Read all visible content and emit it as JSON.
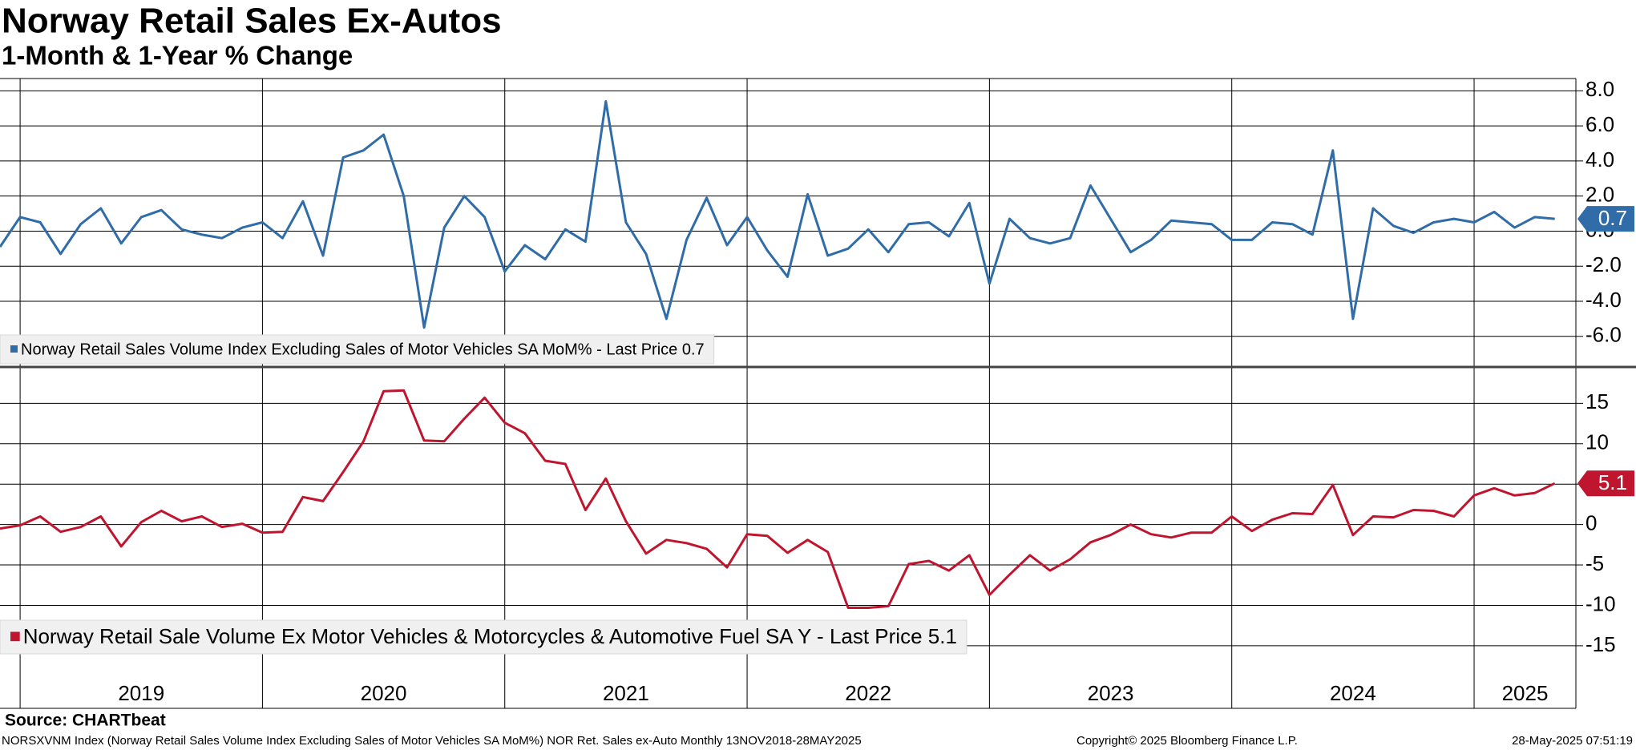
{
  "title": "Norway Retail Sales Ex-Autos",
  "subtitle": "1-Month & 1-Year % Change",
  "source": "Source: CHARTbeat",
  "footer_left": "NORSXVNM Index (Norway Retail Sales Volume Index Excluding Sales of Motor Vehicles SA MoM%) NOR Ret. Sales ex-Auto  Monthly 13NOV2018-28MAY2025",
  "footer_center": "Copyright© 2025 Bloomberg Finance L.P.",
  "footer_right": "28-May-2025 07:51:19",
  "chart_data": [
    {
      "type": "line",
      "x": [
        2018.917,
        2019.0,
        2019.083,
        2019.167,
        2019.25,
        2019.333,
        2019.417,
        2019.5,
        2019.583,
        2019.667,
        2019.75,
        2019.833,
        2019.917,
        2020.0,
        2020.083,
        2020.167,
        2020.25,
        2020.333,
        2020.417,
        2020.5,
        2020.583,
        2020.667,
        2020.75,
        2020.833,
        2020.917,
        2021.0,
        2021.083,
        2021.167,
        2021.25,
        2021.333,
        2021.417,
        2021.5,
        2021.583,
        2021.667,
        2021.75,
        2021.833,
        2021.917,
        2022.0,
        2022.083,
        2022.167,
        2022.25,
        2022.333,
        2022.417,
        2022.5,
        2022.583,
        2022.667,
        2022.75,
        2022.833,
        2022.917,
        2023.0,
        2023.083,
        2023.167,
        2023.25,
        2023.333,
        2023.417,
        2023.5,
        2023.583,
        2023.667,
        2023.75,
        2023.833,
        2023.917,
        2024.0,
        2024.083,
        2024.167,
        2024.25,
        2024.333,
        2024.417,
        2024.5,
        2024.583,
        2024.667,
        2024.75,
        2024.833,
        2024.917,
        2025.0,
        2025.083,
        2025.167,
        2025.25,
        2025.333
      ],
      "xlim": [
        2018.917,
        2025.42
      ],
      "series": [
        {
          "name": "Norway Retail Sales Volume Index Excluding Sales of Motor Vehicles SA MoM% - Last Price 0.7",
          "color": "#2f6ca8",
          "values": [
            -0.9,
            0.8,
            0.5,
            -1.3,
            0.4,
            1.3,
            -0.7,
            0.8,
            1.2,
            0.1,
            -0.2,
            -0.4,
            0.2,
            0.5,
            -0.4,
            1.7,
            -1.4,
            4.2,
            4.6,
            5.5,
            2.0,
            -5.5,
            0.2,
            2.0,
            0.8,
            -2.3,
            -0.8,
            -1.6,
            0.1,
            -0.6,
            7.4,
            0.5,
            -1.3,
            -5.0,
            -0.5,
            1.9,
            -0.8,
            0.8,
            -1.1,
            -2.6,
            2.1,
            -1.4,
            -1.0,
            0.1,
            -1.2,
            0.4,
            0.5,
            -0.3,
            1.6,
            -3.0,
            0.7,
            -0.4,
            -0.7,
            -0.4,
            2.6,
            0.7,
            -1.2,
            -0.5,
            0.6,
            0.5,
            0.4,
            -0.5,
            -0.5,
            0.5,
            0.4,
            -0.2,
            4.6,
            -5.0,
            1.3,
            0.3,
            -0.1,
            0.5,
            0.7,
            0.5,
            1.1,
            0.2,
            0.8,
            0.7
          ]
        }
      ],
      "ylim": [
        -7.7,
        8.7
      ],
      "yticks": [
        {
          "value": 8,
          "label": "8.0"
        },
        {
          "value": 6,
          "label": "6.0"
        },
        {
          "value": 4,
          "label": "4.0"
        },
        {
          "value": 2,
          "label": "2.0"
        },
        {
          "value": 0,
          "label": "0.0"
        },
        {
          "value": -2,
          "label": "-2.0"
        },
        {
          "value": -4,
          "label": "-4.0"
        },
        {
          "value": -6,
          "label": "-6.0"
        }
      ],
      "grid": true
    },
    {
      "type": "line",
      "x": [
        2018.917,
        2019.0,
        2019.083,
        2019.167,
        2019.25,
        2019.333,
        2019.417,
        2019.5,
        2019.583,
        2019.667,
        2019.75,
        2019.833,
        2019.917,
        2020.0,
        2020.083,
        2020.167,
        2020.25,
        2020.333,
        2020.417,
        2020.5,
        2020.583,
        2020.667,
        2020.75,
        2020.833,
        2020.917,
        2021.0,
        2021.083,
        2021.167,
        2021.25,
        2021.333,
        2021.417,
        2021.5,
        2021.583,
        2021.667,
        2021.75,
        2021.833,
        2021.917,
        2022.0,
        2022.083,
        2022.167,
        2022.25,
        2022.333,
        2022.417,
        2022.5,
        2022.583,
        2022.667,
        2022.75,
        2022.833,
        2022.917,
        2023.0,
        2023.083,
        2023.167,
        2023.25,
        2023.333,
        2023.417,
        2023.5,
        2023.583,
        2023.667,
        2023.75,
        2023.833,
        2023.917,
        2024.0,
        2024.083,
        2024.167,
        2024.25,
        2024.333,
        2024.417,
        2024.5,
        2024.583,
        2024.667,
        2024.75,
        2024.833,
        2024.917,
        2025.0,
        2025.083,
        2025.167,
        2025.25,
        2025.333
      ],
      "xlim": [
        2018.917,
        2025.42
      ],
      "xticks": [
        2019,
        2020,
        2021,
        2022,
        2023,
        2024,
        2025
      ],
      "series": [
        {
          "name": "Norway Retail Sale Volume Ex Motor Vehicles & Motorcycles & Automotive Fuel SA Y - Last Price 5.1",
          "color": "#c0152f",
          "values": [
            -0.5,
            -0.1,
            1.0,
            -0.9,
            -0.3,
            1.0,
            -2.7,
            0.3,
            1.7,
            0.4,
            1.0,
            -0.3,
            0.1,
            -1.0,
            -0.9,
            3.4,
            2.9,
            6.5,
            10.3,
            16.5,
            16.6,
            10.4,
            10.3,
            13.1,
            15.7,
            12.6,
            11.3,
            7.9,
            7.5,
            1.8,
            5.7,
            0.4,
            -3.6,
            -1.9,
            -2.3,
            -3.0,
            -5.3,
            -1.2,
            -1.4,
            -3.5,
            -1.9,
            -3.4,
            -10.3,
            -10.3,
            -10.1,
            -4.9,
            -4.5,
            -5.7,
            -3.8,
            -8.7,
            -6.2,
            -3.8,
            -5.7,
            -4.3,
            -2.2,
            -1.3,
            0.0,
            -1.2,
            -1.6,
            -1.0,
            -1.0,
            1.0,
            -0.8,
            0.6,
            1.4,
            1.3,
            4.9,
            -1.3,
            1.0,
            0.9,
            1.8,
            1.7,
            1.0,
            3.6,
            4.5,
            3.6,
            3.9,
            5.1
          ]
        }
      ],
      "ylim": [
        -16.3,
        19.4
      ],
      "yticks": [
        15,
        10,
        5,
        0,
        -5,
        -10,
        -15
      ],
      "grid": true
    }
  ]
}
